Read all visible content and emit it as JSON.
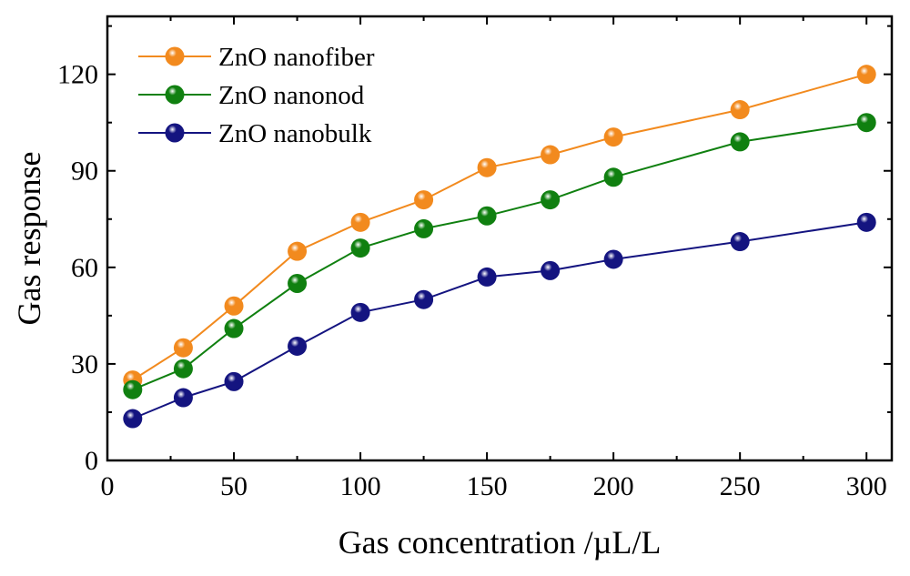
{
  "chart_data": {
    "type": "line",
    "xlabel": "Gas concentration /µL/L",
    "ylabel": "Gas response",
    "xlim": [
      0,
      310
    ],
    "ylim": [
      0,
      138
    ],
    "xticks": [
      0,
      50,
      100,
      150,
      200,
      250,
      300
    ],
    "yticks": [
      0,
      30,
      60,
      90,
      120
    ],
    "legend_position": "top-left",
    "grid": false,
    "series": [
      {
        "name": "ZnO nanofiber",
        "color": "#f28a1e",
        "x": [
          10,
          30,
          50,
          75,
          100,
          125,
          150,
          175,
          200,
          250,
          300
        ],
        "y": [
          25,
          35,
          48,
          65,
          74,
          81,
          91,
          95,
          100.5,
          109,
          120
        ]
      },
      {
        "name": "ZnO nanonod",
        "color": "#108010",
        "x": [
          10,
          30,
          50,
          75,
          100,
          125,
          150,
          175,
          200,
          250,
          300
        ],
        "y": [
          22,
          28.5,
          41,
          55,
          66,
          72,
          76,
          81,
          88,
          99,
          105
        ]
      },
      {
        "name": "ZnO nanobulk",
        "color": "#141480",
        "x": [
          10,
          30,
          50,
          75,
          100,
          125,
          150,
          175,
          200,
          250,
          300
        ],
        "y": [
          13,
          19.5,
          24.5,
          35.5,
          46,
          50,
          57,
          59,
          62.5,
          68,
          74
        ]
      }
    ]
  }
}
